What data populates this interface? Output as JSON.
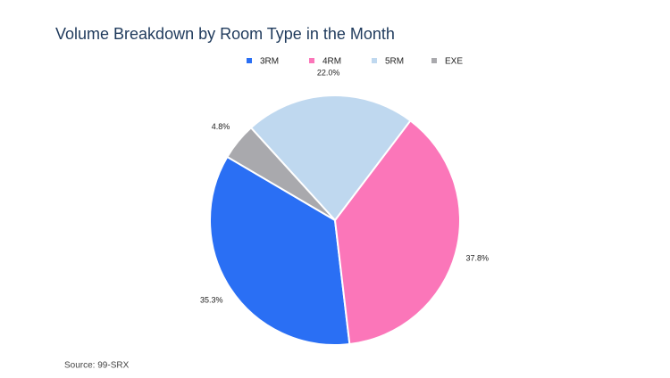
{
  "chart_data": {
    "type": "pie",
    "title": "Volume Breakdown by Room Type in the Month",
    "categories": [
      "3RM",
      "4RM",
      "5RM",
      "EXE"
    ],
    "values": [
      35.3,
      37.8,
      22.0,
      4.8
    ],
    "value_labels": [
      "35.3%",
      "37.8%",
      "22.0%",
      "4.8%"
    ],
    "colors": [
      "#2a6ff4",
      "#fb76b9",
      "#bfd8ef",
      "#a9a9ad"
    ],
    "legend": "top",
    "source": "Source: 99-SRX"
  }
}
